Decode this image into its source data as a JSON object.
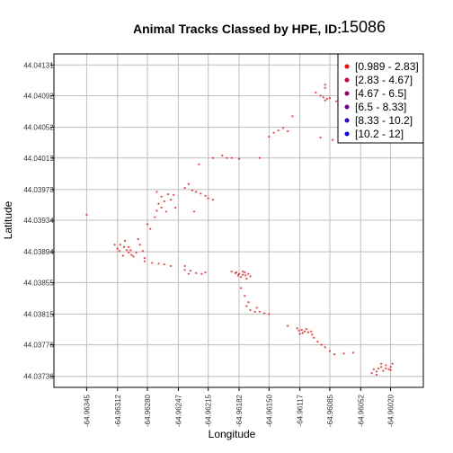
{
  "chart_data": {
    "type": "scatter",
    "title": "Animal Tracks Classed by HPE, ID:",
    "title_id": "15086",
    "xlabel": "Longitude",
    "ylabel": "Latitude",
    "xlim": [
      -64.9638,
      -64.95985
    ],
    "ylim": [
      44.03722,
      44.04145
    ],
    "grid": true,
    "legend_position": "top-right",
    "x_ticks": [
      {
        "value": -64.96345,
        "label": "-64.96345"
      },
      {
        "value": -64.96312,
        "label": "-64.96312"
      },
      {
        "value": -64.9628,
        "label": "-64.96280"
      },
      {
        "value": -64.96247,
        "label": "-64.96247"
      },
      {
        "value": -64.96215,
        "label": "-64.96215"
      },
      {
        "value": -64.96182,
        "label": "-64.96182"
      },
      {
        "value": -64.9615,
        "label": "-64.96150"
      },
      {
        "value": -64.96117,
        "label": "-64.96117"
      },
      {
        "value": -64.96085,
        "label": "-64.96085"
      },
      {
        "value": -64.96052,
        "label": "-64.96052"
      },
      {
        "value": -64.9602,
        "label": "-64.96020"
      }
    ],
    "y_ticks": [
      {
        "value": 44.03736,
        "label": "44.03736"
      },
      {
        "value": 44.03776,
        "label": "44.03776"
      },
      {
        "value": 44.03815,
        "label": "44.03815"
      },
      {
        "value": 44.03855,
        "label": "44.03855"
      },
      {
        "value": 44.03894,
        "label": "44.03894"
      },
      {
        "value": 44.03934,
        "label": "44.03934"
      },
      {
        "value": 44.03973,
        "label": "44.03973"
      },
      {
        "value": 44.04013,
        "label": "44.04013"
      },
      {
        "value": 44.04052,
        "label": "44.04052"
      },
      {
        "value": 44.04092,
        "label": "44.04092"
      },
      {
        "value": 44.04131,
        "label": "44.04131"
      }
    ],
    "legend": [
      {
        "label": "[0.989 - 2.83]",
        "color": "#ff0000"
      },
      {
        "label": "[2.83 - 4.67]",
        "color": "#cc0033"
      },
      {
        "label": "[4.67 - 6.5]",
        "color": "#990066"
      },
      {
        "label": "[6.5 - 8.33]",
        "color": "#660099"
      },
      {
        "label": "[8.33 - 10.2]",
        "color": "#3300cc"
      },
      {
        "label": "[10.2 - 12]",
        "color": "#0000ff"
      }
    ],
    "series": [
      {
        "color": "#ff0000",
        "points": [
          [
            -64.96345,
            44.03941
          ],
          [
            -64.96315,
            44.03903
          ],
          [
            -64.96312,
            44.03898
          ],
          [
            -64.96309,
            44.03903
          ],
          [
            -64.96305,
            44.039
          ],
          [
            -64.96302,
            44.03896
          ],
          [
            -64.963,
            44.03893
          ],
          [
            -64.96297,
            44.0389
          ],
          [
            -64.9631,
            44.03895
          ],
          [
            -64.963,
            44.039
          ],
          [
            -64.96292,
            44.03893
          ],
          [
            -64.96306,
            44.03889
          ],
          [
            -64.96295,
            44.03888
          ],
          [
            -64.96285,
            44.03895
          ],
          [
            -64.96288,
            44.03903
          ],
          [
            -64.96283,
            44.03886
          ],
          [
            -64.96298,
            44.03896
          ],
          [
            -64.96304,
            44.03908
          ],
          [
            -64.9629,
            44.0391
          ],
          [
            -64.96277,
            44.03923
          ],
          [
            -64.9628,
            44.03929
          ],
          [
            -64.96272,
            44.03938
          ],
          [
            -64.9627,
            44.0397
          ],
          [
            -64.96265,
            44.03964
          ],
          [
            -64.96258,
            44.03967
          ],
          [
            -64.96262,
            44.03958
          ],
          [
            -64.96255,
            44.0396
          ],
          [
            -64.96268,
            44.03955
          ],
          [
            -64.9626,
            44.03945
          ],
          [
            -64.96252,
            44.03966
          ],
          [
            -64.96265,
            44.0395
          ],
          [
            -64.9625,
            44.0395
          ],
          [
            -64.9627,
            44.03946
          ],
          [
            -64.9624,
            44.03975
          ],
          [
            -64.96236,
            44.0398
          ],
          [
            -64.96232,
            44.03972
          ],
          [
            -64.96228,
            44.0397
          ],
          [
            -64.96223,
            44.03968
          ],
          [
            -64.96218,
            44.03965
          ],
          [
            -64.96215,
            44.03962
          ],
          [
            -64.9621,
            44.0396
          ],
          [
            -64.9623,
            44.03945
          ],
          [
            -64.96283,
            44.03882
          ],
          [
            -64.96275,
            44.0388
          ],
          [
            -64.96268,
            44.03879
          ],
          [
            -64.96262,
            44.03878
          ],
          [
            -64.96255,
            44.03876
          ],
          [
            -64.9624,
            44.03876
          ],
          [
            -64.9624,
            44.03871
          ],
          [
            -64.96234,
            44.0387
          ],
          [
            -64.96228,
            44.03867
          ],
          [
            -64.96222,
            44.03866
          ],
          [
            -64.96218,
            44.03868
          ],
          [
            -64.96236,
            44.03866
          ],
          [
            -64.9619,
            44.03869
          ],
          [
            -64.96186,
            44.03867
          ],
          [
            -64.96182,
            44.03866
          ],
          [
            -64.96178,
            44.03865
          ],
          [
            -64.96175,
            44.03864
          ],
          [
            -64.96172,
            44.03866
          ],
          [
            -64.9618,
            44.03862
          ],
          [
            -64.96185,
            44.03868
          ],
          [
            -64.96176,
            44.03868
          ],
          [
            -64.9617,
            44.03863
          ],
          [
            -64.96183,
            44.03864
          ],
          [
            -64.96178,
            44.03869
          ],
          [
            -64.96174,
            44.0386
          ],
          [
            -64.9618,
            44.03848
          ],
          [
            -64.96176,
            44.03838
          ],
          [
            -64.96172,
            44.0383
          ],
          [
            -64.96174,
            44.03825
          ],
          [
            -64.9617,
            44.0382
          ],
          [
            -64.96165,
            44.03818
          ],
          [
            -64.9616,
            44.03818
          ],
          [
            -64.96155,
            44.03816
          ],
          [
            -64.9615,
            44.03815
          ],
          [
            -64.96163,
            44.03823
          ],
          [
            -64.9613,
            44.038
          ],
          [
            -64.9612,
            44.03797
          ],
          [
            -64.96115,
            44.03795
          ],
          [
            -64.96112,
            44.03793
          ],
          [
            -64.96108,
            44.03792
          ],
          [
            -64.96117,
            44.0379
          ],
          [
            -64.96105,
            44.03793
          ],
          [
            -64.9611,
            44.03796
          ],
          [
            -64.96114,
            44.03791
          ],
          [
            -64.96118,
            44.03794
          ],
          [
            -64.96104,
            44.03789
          ],
          [
            -64.96102,
            44.03785
          ],
          [
            -64.96098,
            44.0378
          ],
          [
            -64.96094,
            44.03776
          ],
          [
            -64.9609,
            44.03773
          ],
          [
            -64.96085,
            44.03768
          ],
          [
            -64.9608,
            44.03764
          ],
          [
            -64.9607,
            44.03765
          ],
          [
            -64.9606,
            44.03766
          ],
          [
            -64.9604,
            44.0374
          ],
          [
            -64.96035,
            44.03742
          ],
          [
            -64.9603,
            44.03748
          ],
          [
            -64.96025,
            44.0375
          ],
          [
            -64.9602,
            44.03748
          ],
          [
            -64.96022,
            44.03745
          ],
          [
            -64.96028,
            44.03743
          ],
          [
            -64.96033,
            44.03746
          ],
          [
            -64.96018,
            44.03752
          ],
          [
            -64.96025,
            44.03746
          ],
          [
            -64.9603,
            44.03752
          ],
          [
            -64.96035,
            44.03738
          ],
          [
            -64.9602,
            44.03744
          ],
          [
            -64.96038,
            44.03745
          ],
          [
            -64.96225,
            44.04005
          ],
          [
            -64.9621,
            44.04013
          ],
          [
            -64.962,
            44.04016
          ],
          [
            -64.96195,
            44.04013
          ],
          [
            -64.9619,
            44.04013
          ],
          [
            -64.96182,
            44.04012
          ],
          [
            -64.9616,
            44.04013
          ],
          [
            -64.9615,
            44.0404
          ],
          [
            -64.96145,
            44.04045
          ],
          [
            -64.9614,
            44.04048
          ],
          [
            -64.96135,
            44.04051
          ],
          [
            -64.9613,
            44.04047
          ],
          [
            -64.96125,
            44.04066
          ],
          [
            -64.961,
            44.04096
          ],
          [
            -64.96095,
            44.04092
          ],
          [
            -64.96092,
            44.0409
          ],
          [
            -64.96088,
            44.04088
          ],
          [
            -64.96085,
            44.04089
          ],
          [
            -64.9609,
            44.04102
          ],
          [
            -64.9609,
            44.04106
          ],
          [
            -64.9609,
            44.04086
          ],
          [
            -64.96078,
            44.04085
          ],
          [
            -64.96076,
            44.0408
          ],
          [
            -64.96095,
            44.04039
          ],
          [
            -64.96082,
            44.04036
          ],
          [
            -64.96074,
            44.04096
          ]
        ]
      }
    ]
  }
}
